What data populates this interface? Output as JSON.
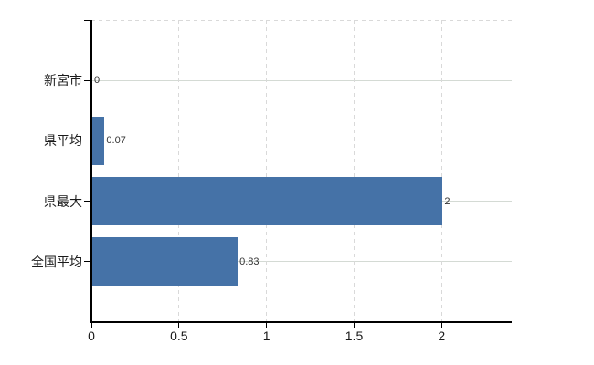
{
  "chart_data": {
    "type": "bar",
    "orientation": "horizontal",
    "title": "",
    "categories": [
      "新宮市",
      "県平均",
      "県最大",
      "全国平均"
    ],
    "values": [
      0,
      0.07,
      2,
      0.83
    ],
    "value_labels": [
      "0",
      "0.07",
      "2",
      "0.83"
    ],
    "x_ticks": [
      0,
      0.5,
      1,
      1.5,
      2
    ],
    "x_tick_labels": [
      "0",
      "0.5",
      "1",
      "1.5",
      "2"
    ],
    "xlim": [
      0,
      2.4
    ],
    "grid": true,
    "legend": false,
    "colors": {
      "bar": "#4572a7",
      "axis": "#000000",
      "h_gridline": "#d4dad4",
      "v_gridline": "#d9d9d9",
      "category_label": "#1a1a1a",
      "value_label": "#333333",
      "tick_label": "#1a1a1a",
      "background": "#ffffff"
    }
  }
}
